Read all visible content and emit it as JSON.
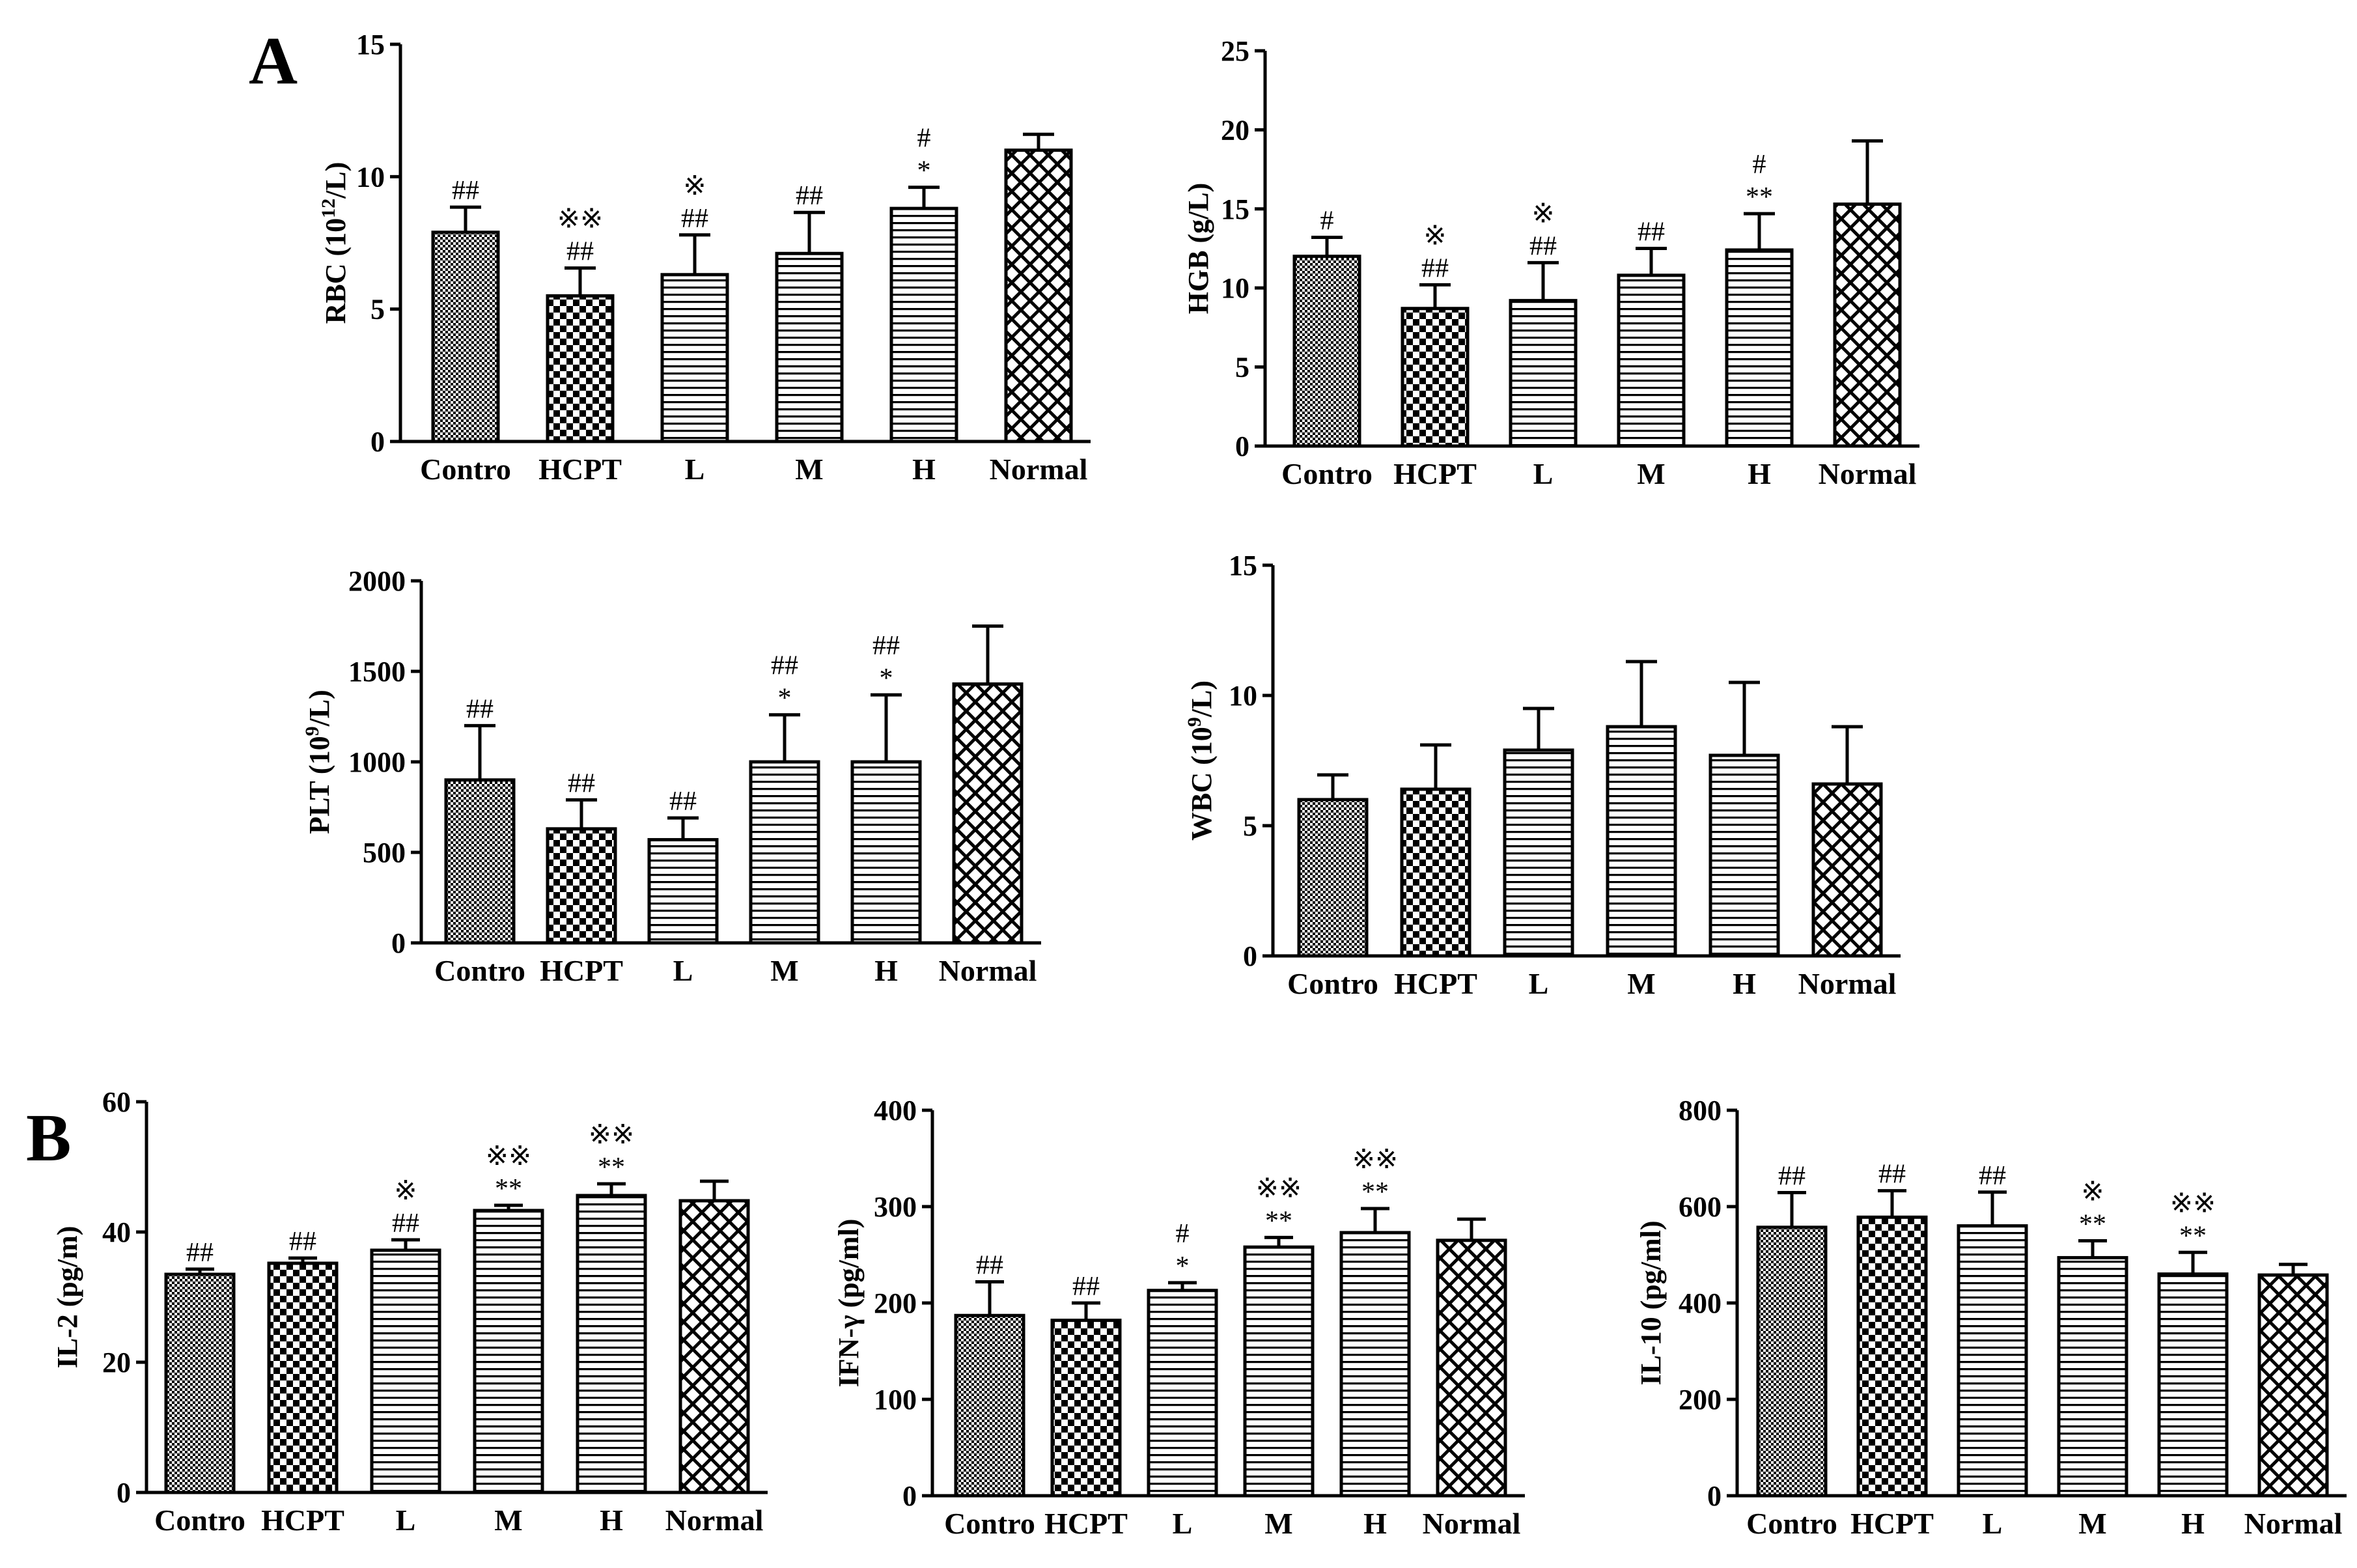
{
  "panels": [
    {
      "label": "A"
    },
    {
      "label": "B"
    }
  ],
  "fill_patterns": [
    "checker-fine",
    "checker-coarse",
    "horizontal-lines",
    "horizontal-lines",
    "horizontal-lines",
    "crosshatch"
  ],
  "chart_data": [
    {
      "type": "bar",
      "panel": "A",
      "ylabel": "RBC (10^12/L)",
      "categories": [
        "Contro",
        "HCPT",
        "L",
        "M",
        "H",
        "Normal"
      ],
      "values": [
        7.9,
        5.5,
        6.3,
        7.1,
        8.8,
        11.0
      ],
      "errors": [
        0.95,
        1.05,
        1.5,
        1.55,
        0.8,
        0.6
      ],
      "ylim": [
        0,
        15
      ],
      "yticks": [
        0,
        5,
        10,
        15
      ],
      "annotations": [
        [
          "##"
        ],
        [
          "##",
          "※※"
        ],
        [
          "##",
          "※"
        ],
        [
          "##"
        ],
        [
          "*",
          "#"
        ],
        []
      ]
    },
    {
      "type": "bar",
      "panel": "A",
      "ylabel": "HGB (g/L)",
      "categories": [
        "Contro",
        "HCPT",
        "L",
        "M",
        "H",
        "Normal"
      ],
      "values": [
        12.0,
        8.7,
        9.2,
        10.8,
        12.4,
        15.3
      ],
      "errors": [
        1.2,
        1.5,
        2.4,
        1.7,
        2.3,
        4.0
      ],
      "ylim": [
        0,
        25
      ],
      "yticks": [
        0,
        5,
        10,
        15,
        20,
        25
      ],
      "annotations": [
        [
          "#"
        ],
        [
          "##",
          "※"
        ],
        [
          "##",
          "※"
        ],
        [
          "##"
        ],
        [
          "**",
          "#"
        ],
        []
      ]
    },
    {
      "type": "bar",
      "panel": "A",
      "ylabel": "PLT (10^9/L)",
      "categories": [
        "Contro",
        "HCPT",
        "L",
        "M",
        "H",
        "Normal"
      ],
      "values": [
        900,
        630,
        570,
        1000,
        1000,
        1430
      ],
      "errors": [
        300,
        160,
        120,
        260,
        370,
        320
      ],
      "ylim": [
        0,
        2000
      ],
      "yticks": [
        0,
        500,
        1000,
        1500,
        2000
      ],
      "annotations": [
        [
          "##"
        ],
        [
          "##"
        ],
        [
          "##"
        ],
        [
          "*",
          "##"
        ],
        [
          "*",
          "##"
        ],
        []
      ]
    },
    {
      "type": "bar",
      "panel": "A",
      "ylabel": "WBC (10^9/L)",
      "categories": [
        "Contro",
        "HCPT",
        "L",
        "M",
        "H",
        "Normal"
      ],
      "values": [
        6.0,
        6.4,
        7.9,
        8.8,
        7.7,
        6.6
      ],
      "errors": [
        0.95,
        1.7,
        1.6,
        2.5,
        2.8,
        2.2
      ],
      "ylim": [
        0,
        15
      ],
      "yticks": [
        0,
        5,
        10,
        15
      ],
      "annotations": [
        [],
        [],
        [],
        [],
        [],
        []
      ]
    },
    {
      "type": "bar",
      "panel": "B",
      "ylabel": "IL-2 (pg/m)",
      "categories": [
        "Contro",
        "HCPT",
        "L",
        "M",
        "H",
        "Normal"
      ],
      "values": [
        33.5,
        35.2,
        37.2,
        43.3,
        45.6,
        44.8
      ],
      "errors": [
        0.8,
        0.8,
        1.6,
        0.8,
        1.8,
        3.0
      ],
      "ylim": [
        0,
        60
      ],
      "yticks": [
        0,
        20,
        40,
        60
      ],
      "annotations": [
        [
          "##"
        ],
        [
          "##"
        ],
        [
          "##",
          "※"
        ],
        [
          "**",
          "※※"
        ],
        [
          "**",
          "※※"
        ],
        []
      ]
    },
    {
      "type": "bar",
      "panel": "B",
      "ylabel": "IFN-γ (pg/ml)",
      "categories": [
        "Contro",
        "HCPT",
        "L",
        "M",
        "H",
        "Normal"
      ],
      "values": [
        187,
        182,
        213,
        258,
        273,
        265
      ],
      "errors": [
        35,
        18,
        8,
        10,
        25,
        22
      ],
      "ylim": [
        0,
        400
      ],
      "yticks": [
        0,
        100,
        200,
        300,
        400
      ],
      "annotations": [
        [
          "##"
        ],
        [
          "##"
        ],
        [
          "*",
          "#"
        ],
        [
          "**",
          "※※"
        ],
        [
          "**",
          "※※"
        ],
        []
      ]
    },
    {
      "type": "bar",
      "panel": "B",
      "ylabel": "IL-10 (pg/ml)",
      "categories": [
        "Contro",
        "HCPT",
        "L",
        "M",
        "H",
        "Normal"
      ],
      "values": [
        557,
        578,
        560,
        494,
        460,
        458
      ],
      "errors": [
        72,
        55,
        70,
        35,
        45,
        22
      ],
      "ylim": [
        0,
        800
      ],
      "yticks": [
        0,
        200,
        400,
        600,
        800
      ],
      "annotations": [
        [
          "##"
        ],
        [
          "##"
        ],
        [
          "##"
        ],
        [
          "**",
          "※"
        ],
        [
          "**",
          "※※"
        ],
        []
      ]
    }
  ]
}
